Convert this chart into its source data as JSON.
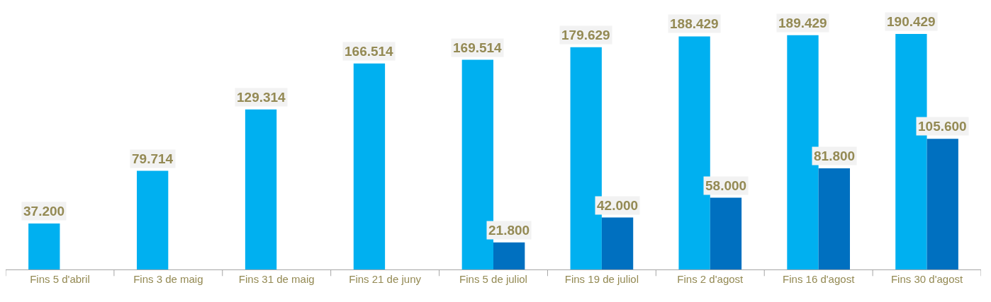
{
  "chart_data": {
    "type": "bar",
    "categories": [
      "Fins 5 d'abril",
      "Fins 3 de maig",
      "Fins 31 de maig",
      "Fins 21 de juny",
      "Fins 5 de juliol",
      "Fins 19 de juliol",
      "Fins 2 d'agost",
      "Fins 16 d'agost",
      "Fins 30 d'agost"
    ],
    "series": [
      {
        "color": "#00b0f0",
        "values": [
          37200,
          79714,
          129314,
          166514,
          169514,
          179629,
          188429,
          189429,
          190429
        ],
        "value_labels": [
          "37.200",
          "79.714",
          "129.314",
          "166.514",
          "169.514",
          "179.629",
          "188.429",
          "189.429",
          "190.429"
        ]
      },
      {
        "color": "#0070c0",
        "values": [
          null,
          null,
          null,
          null,
          21800,
          42000,
          58000,
          81800,
          105600
        ],
        "value_labels": [
          null,
          null,
          null,
          null,
          "21.800",
          "42.000",
          "58.000",
          "81.800",
          "105.600"
        ]
      }
    ]
  }
}
